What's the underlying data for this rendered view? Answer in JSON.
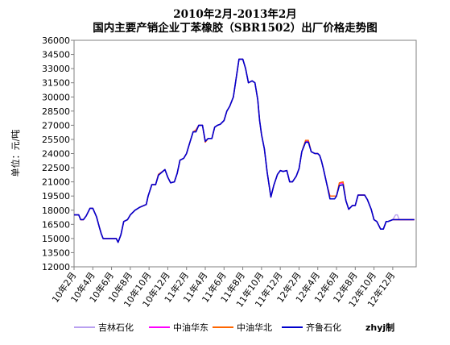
{
  "chart_data": {
    "type": "line",
    "title": "2010年2月-2013年2月",
    "subtitle": "国内主要产销企业丁苯橡胶（SBR1502）出厂价格走势图",
    "ylabel": "单位：元/吨",
    "xlabel": "",
    "ylim": [
      12000,
      36000
    ],
    "y_ticks": [
      12000,
      13500,
      15000,
      16500,
      18000,
      19500,
      21000,
      22500,
      24000,
      25500,
      27000,
      28500,
      30000,
      31500,
      33000,
      34500,
      36000
    ],
    "x_ticks": [
      "10年2月",
      "10年4月",
      "10年6月",
      "10年8月",
      "10年10月",
      "10年12月",
      "11年2月",
      "11年4月",
      "11年6月",
      "11年8月",
      "11年10月",
      "11年12月",
      "12年2月",
      "12年4月",
      "12年6月",
      "12年8月",
      "12年10月",
      "12年12月"
    ],
    "x_range": [
      0,
      36.5
    ],
    "grid": false,
    "legend_position": "bottom",
    "watermark": "zhyj制",
    "series": [
      {
        "name": "吉林石化",
        "color": "#b9a0f0",
        "x": [
          0,
          0.5,
          0.7,
          1.0,
          1.3,
          1.7,
          2.0,
          2.4,
          2.7,
          2.9,
          3.1,
          3.3,
          4.0,
          4.5,
          4.7,
          5.0,
          5.3,
          5.7,
          6.0,
          6.5,
          7.0,
          7.7,
          7.9,
          8.3,
          8.7,
          9.0,
          9.7,
          10.0,
          10.3,
          10.7,
          11.0,
          11.3,
          11.7,
          12.0,
          12.3,
          12.7,
          13.0,
          13.3,
          13.7,
          14.0,
          14.3,
          14.7,
          15.0,
          15.3,
          15.6,
          16.0,
          16.3,
          16.6,
          17.0,
          17.3,
          17.6,
          18.0,
          18.3,
          18.6,
          19.0,
          19.3,
          19.6,
          19.8,
          20.0,
          20.3,
          20.6,
          21.0,
          21.3,
          21.7,
          22.0,
          22.3,
          22.7,
          23.0,
          23.3,
          23.7,
          24.0,
          24.3,
          24.7,
          25.0,
          25.3,
          25.7,
          26.0,
          26.2,
          26.4,
          26.6,
          27.0,
          27.3,
          27.5,
          27.8,
          28.0,
          28.3,
          28.7,
          29.0,
          29.3,
          29.7,
          30.0,
          30.3,
          30.7,
          31.0,
          31.3,
          31.7,
          32.0,
          32.3,
          32.7,
          33.0,
          33.3,
          33.5,
          34.0,
          34.3,
          34.5,
          34.7,
          35.0,
          35.3,
          35.6,
          36.0,
          36.3
        ],
        "y": [
          17500,
          17500,
          17000,
          17000,
          17400,
          18200,
          18200,
          17300,
          16200,
          15500,
          15000,
          15000,
          15000,
          15000,
          14600,
          15400,
          16800,
          17000,
          17500,
          18000,
          18300,
          18600,
          19500,
          20700,
          20700,
          21700,
          22300,
          21500,
          20900,
          21000,
          21900,
          23300,
          23500,
          24000,
          25000,
          26300,
          26300,
          27000,
          27000,
          25300,
          25600,
          25600,
          26800,
          27000,
          27100,
          27500,
          28500,
          29000,
          30000,
          32000,
          34000,
          34000,
          33000,
          31500,
          31700,
          31500,
          29700,
          27500,
          26000,
          24500,
          22000,
          19400,
          20600,
          21800,
          22200,
          22100,
          22200,
          21000,
          21000,
          21600,
          22400,
          24200,
          25400,
          25300,
          24200,
          24000,
          24000,
          23800,
          23200,
          22400,
          20600,
          19500,
          19500,
          19500,
          19500,
          20800,
          20900,
          19000,
          18100,
          18500,
          18500,
          19600,
          19600,
          19600,
          19100,
          18100,
          17000,
          16800,
          16000,
          16000,
          16800,
          16800,
          17000,
          17500,
          17500,
          17000,
          17000,
          17000,
          17000,
          17000,
          17000
        ]
      },
      {
        "name": "中油华东",
        "color": "#ff00ff",
        "x": [
          0,
          0.5,
          0.7,
          1.0,
          1.3,
          1.7,
          2.0,
          2.4,
          2.7,
          2.9,
          3.1,
          3.3,
          4.0,
          4.5,
          4.7,
          5.0,
          5.3,
          5.7,
          6.0,
          6.5,
          7.0,
          7.7,
          7.9,
          8.3,
          8.7,
          9.0,
          9.7,
          10.0,
          10.3,
          10.7,
          11.0,
          11.3,
          11.7,
          12.0,
          12.3,
          12.7,
          13.0,
          13.3,
          13.7,
          14.0,
          14.3,
          14.7,
          15.0,
          15.3,
          15.6,
          16.0,
          16.3,
          16.6,
          17.0,
          17.3,
          17.6,
          18.0,
          18.3,
          18.6,
          19.0,
          19.3,
          19.6,
          19.8,
          20.0,
          20.3,
          20.6,
          21.0,
          21.3,
          21.7,
          22.0,
          22.3,
          22.7,
          23.0,
          23.3,
          23.7,
          24.0,
          24.3,
          24.7,
          25.0,
          25.3,
          25.7,
          26.0,
          26.2,
          26.4,
          26.6,
          27.0,
          27.3,
          27.5,
          27.8,
          28.0,
          28.3,
          28.7,
          29.0,
          29.3,
          29.7,
          30.0,
          30.3,
          30.7,
          31.0,
          31.3,
          31.7,
          32.0,
          32.3,
          32.7,
          33.0,
          33.3,
          33.5,
          34.0,
          34.3,
          34.5,
          34.7,
          35.0,
          35.3,
          35.6,
          36.0,
          36.3
        ],
        "y": [
          17500,
          17500,
          17000,
          17000,
          17400,
          18200,
          18200,
          17300,
          16200,
          15500,
          15000,
          15000,
          15000,
          15000,
          14600,
          15400,
          16800,
          17000,
          17500,
          18000,
          18300,
          18600,
          19500,
          20700,
          20700,
          21800,
          22300,
          21500,
          20900,
          21000,
          21900,
          23300,
          23500,
          24000,
          25000,
          26300,
          26500,
          27000,
          27000,
          25200,
          25600,
          25600,
          26800,
          27000,
          27100,
          27500,
          28500,
          29000,
          30000,
          32000,
          34000,
          34000,
          33000,
          31500,
          31700,
          31500,
          29700,
          27500,
          26000,
          24500,
          22000,
          19400,
          20600,
          21800,
          22200,
          22100,
          22200,
          21000,
          21000,
          21600,
          22400,
          24200,
          25300,
          25300,
          24200,
          24000,
          24000,
          23800,
          23200,
          22400,
          20600,
          19500,
          19500,
          19500,
          19500,
          20800,
          20900,
          19000,
          18100,
          18500,
          18500,
          19600,
          19600,
          19600,
          19100,
          18100,
          17000,
          16800,
          16000,
          16000,
          16800,
          16800,
          17000,
          17000,
          17000,
          17000,
          17000,
          17000,
          17000,
          17000,
          17000
        ]
      },
      {
        "name": "中油华北",
        "color": "#ff6600",
        "x": [
          0,
          0.5,
          0.7,
          1.0,
          1.3,
          1.7,
          2.0,
          2.4,
          2.7,
          2.9,
          3.1,
          3.3,
          4.0,
          4.5,
          4.7,
          5.0,
          5.3,
          5.7,
          6.0,
          6.5,
          7.0,
          7.7,
          7.9,
          8.3,
          8.7,
          9.0,
          9.7,
          10.0,
          10.3,
          10.7,
          11.0,
          11.3,
          11.7,
          12.0,
          12.3,
          12.7,
          13.0,
          13.3,
          13.7,
          14.0,
          14.3,
          14.7,
          15.0,
          15.3,
          15.6,
          16.0,
          16.3,
          16.6,
          17.0,
          17.3,
          17.6,
          18.0,
          18.3,
          18.6,
          19.0,
          19.3,
          19.6,
          19.8,
          20.0,
          20.3,
          20.6,
          21.0,
          21.3,
          21.7,
          22.0,
          22.3,
          22.7,
          23.0,
          23.3,
          23.7,
          24.0,
          24.3,
          24.7,
          25.0,
          25.3,
          25.7,
          26.0,
          26.2,
          26.4,
          26.6,
          27.0,
          27.3,
          27.5,
          27.8,
          28.0,
          28.3,
          28.7,
          29.0,
          29.3,
          29.7,
          30.0,
          30.3,
          30.7,
          31.0,
          31.3,
          31.7,
          32.0,
          32.3,
          32.7,
          33.0,
          33.3,
          33.5,
          34.0,
          34.3,
          34.5,
          34.7,
          35.0,
          35.3,
          35.6,
          36.0,
          36.3
        ],
        "y": [
          17500,
          17500,
          17000,
          17000,
          17400,
          18200,
          18200,
          17300,
          16200,
          15500,
          15000,
          15000,
          15000,
          15000,
          14600,
          15400,
          16800,
          17000,
          17500,
          18000,
          18300,
          18600,
          19500,
          20700,
          20700,
          21800,
          22300,
          21500,
          20900,
          21000,
          21900,
          23300,
          23500,
          24000,
          25000,
          26300,
          26500,
          27000,
          27000,
          25200,
          25600,
          25600,
          26800,
          27000,
          27100,
          27500,
          28500,
          29000,
          30000,
          32000,
          34000,
          34000,
          33000,
          31500,
          31700,
          31500,
          29700,
          27500,
          26000,
          24500,
          22000,
          19400,
          20600,
          21800,
          22200,
          22100,
          22200,
          21000,
          21000,
          21600,
          22400,
          24200,
          25400,
          25400,
          24200,
          24000,
          24000,
          23800,
          23200,
          22400,
          20600,
          19500,
          19500,
          19500,
          19500,
          20900,
          21000,
          19000,
          18100,
          18500,
          18500,
          19600,
          19600,
          19600,
          19100,
          18100,
          17000,
          16800,
          16000,
          16000,
          16800,
          16800,
          17000,
          17000,
          17000,
          17000,
          17000,
          17000,
          17000,
          17000,
          17000
        ]
      },
      {
        "name": "齐鲁石化",
        "color": "#0000cc",
        "x": [
          0,
          0.5,
          0.7,
          1.0,
          1.3,
          1.7,
          2.0,
          2.4,
          2.7,
          2.9,
          3.1,
          3.3,
          4.0,
          4.5,
          4.7,
          5.0,
          5.3,
          5.7,
          6.0,
          6.5,
          7.0,
          7.7,
          7.9,
          8.3,
          8.7,
          9.0,
          9.7,
          10.0,
          10.3,
          10.7,
          11.0,
          11.3,
          11.7,
          12.0,
          12.3,
          12.7,
          13.0,
          13.3,
          13.7,
          14.0,
          14.3,
          14.7,
          15.0,
          15.3,
          15.6,
          16.0,
          16.3,
          16.6,
          17.0,
          17.3,
          17.6,
          18.0,
          18.3,
          18.6,
          19.0,
          19.3,
          19.6,
          19.8,
          20.0,
          20.3,
          20.6,
          21.0,
          21.3,
          21.7,
          22.0,
          22.3,
          22.7,
          23.0,
          23.3,
          23.7,
          24.0,
          24.3,
          24.7,
          25.0,
          25.3,
          25.7,
          26.0,
          26.2,
          26.4,
          26.6,
          27.0,
          27.3,
          27.5,
          27.8,
          28.0,
          28.3,
          28.7,
          29.0,
          29.3,
          29.7,
          30.0,
          30.3,
          30.7,
          31.0,
          31.3,
          31.7,
          32.0,
          32.3,
          32.7,
          33.0,
          33.3,
          33.5,
          34.0,
          34.3,
          34.5,
          34.7,
          35.0,
          35.3,
          35.6,
          36.0,
          36.3
        ],
        "y": [
          17500,
          17500,
          17000,
          17000,
          17400,
          18200,
          18200,
          17300,
          16200,
          15500,
          15000,
          15000,
          15000,
          15000,
          14600,
          15400,
          16800,
          17000,
          17500,
          18000,
          18300,
          18600,
          19500,
          20700,
          20700,
          21700,
          22300,
          21500,
          20900,
          21000,
          21900,
          23300,
          23500,
          24000,
          25000,
          26300,
          26300,
          27000,
          27000,
          25300,
          25600,
          25600,
          26800,
          27000,
          27100,
          27500,
          28500,
          29000,
          30000,
          32000,
          34000,
          34000,
          33000,
          31500,
          31700,
          31500,
          29700,
          27500,
          26000,
          24500,
          22000,
          19400,
          20600,
          21800,
          22200,
          22100,
          22200,
          21000,
          21000,
          21600,
          22400,
          24200,
          25200,
          25200,
          24200,
          24000,
          24000,
          23800,
          23200,
          22400,
          20600,
          19200,
          19200,
          19200,
          19500,
          20600,
          20700,
          19000,
          18100,
          18500,
          18500,
          19600,
          19600,
          19600,
          19100,
          18100,
          17000,
          16800,
          16000,
          16000,
          16800,
          16800,
          17000,
          17000,
          17000,
          17000,
          17000,
          17000,
          17000,
          17000,
          17000
        ]
      }
    ]
  }
}
